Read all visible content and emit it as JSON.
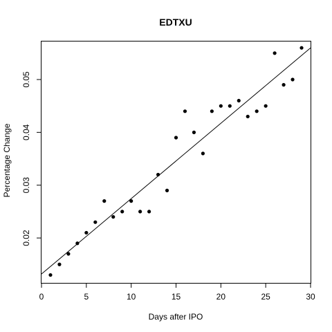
{
  "chart_data": {
    "type": "scatter",
    "title": "EDTXU",
    "xlabel": "Days after IPO",
    "ylabel": "Percentage Change",
    "xlim": [
      0,
      30
    ],
    "ylim": [
      0.0115,
      0.0572
    ],
    "xticks": [
      0,
      5,
      10,
      15,
      20,
      25,
      30
    ],
    "xtick_labels": [
      "0",
      "5",
      "10",
      "15",
      "20",
      "25",
      "30"
    ],
    "yticks": [
      0.02,
      0.03,
      0.04,
      0.05
    ],
    "ytick_labels": [
      "0.02",
      "0.03",
      "0.04",
      "0.05"
    ],
    "grid": false,
    "series": [
      {
        "x": [
          1,
          2,
          3,
          4,
          5,
          6,
          7,
          8,
          9,
          10,
          11,
          12,
          13,
          14,
          15,
          16,
          17,
          18,
          19,
          20,
          21,
          22,
          23,
          24,
          25,
          26,
          27,
          28,
          29
        ],
        "y": [
          0.013,
          0.015,
          0.017,
          0.019,
          0.021,
          0.023,
          0.027,
          0.024,
          0.025,
          0.027,
          0.025,
          0.025,
          0.032,
          0.029,
          0.039,
          0.044,
          0.04,
          0.036,
          0.044,
          0.045,
          0.045,
          0.046,
          0.043,
          0.044,
          0.045,
          0.055,
          0.049,
          0.05,
          0.056
        ]
      }
    ],
    "trend_line": {
      "intercept": 0.01318,
      "slope": 0.001427
    }
  }
}
